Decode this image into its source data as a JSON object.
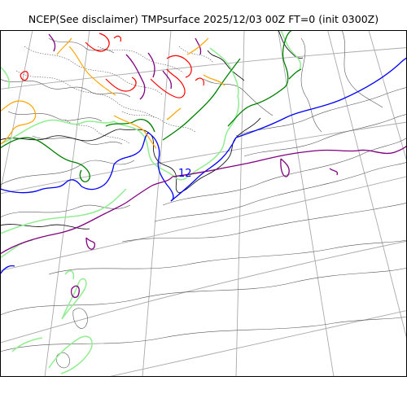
{
  "title": "NCEP(See disclaimer) TMPsurface 2025/12/03 00Z FT=0 (init 0300Z)",
  "contour_label": "12",
  "colors": {
    "graticule": "#aaaaaa",
    "coast_outline": "#000000",
    "contour_thin": "#555555",
    "contour_blue": "#0000ff",
    "contour_green": "#008000",
    "contour_lightgreen": "#90ee90",
    "contour_purple": "#800080",
    "contour_orange": "#ffa500",
    "contour_red": "#ff0000"
  }
}
